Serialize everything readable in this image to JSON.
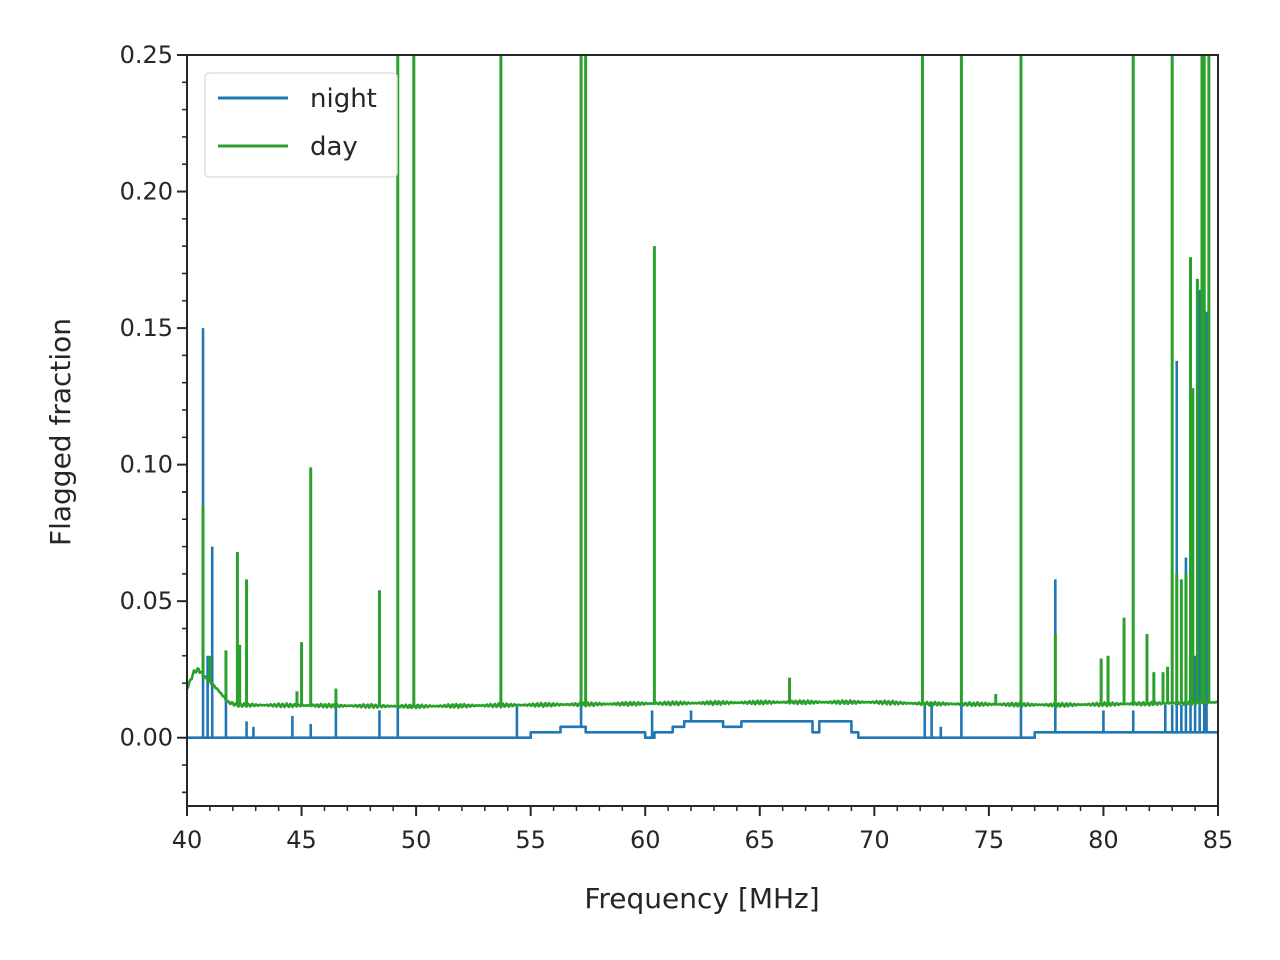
{
  "chart_data": {
    "type": "line",
    "title": "",
    "xlabel": "Frequency [MHz]",
    "ylabel": "Flagged fraction",
    "xlim": [
      40,
      85
    ],
    "ylim": [
      -0.025,
      0.25
    ],
    "xticks": [
      40,
      45,
      50,
      55,
      60,
      65,
      70,
      75,
      80,
      85
    ],
    "xtick_labels": [
      "40",
      "45",
      "50",
      "55",
      "60",
      "65",
      "70",
      "75",
      "80",
      "85"
    ],
    "yticks": [
      0.0,
      0.05,
      0.1,
      0.15,
      0.2,
      0.25
    ],
    "ytick_labels": [
      "0.00",
      "0.05",
      "0.10",
      "0.15",
      "0.20",
      "0.25"
    ],
    "legend_position": "top-left",
    "grid": false,
    "series": [
      {
        "name": "night",
        "color": "#1f77b4",
        "base_levels": [
          [
            40.0,
            55.0,
            0.0
          ],
          [
            55.0,
            56.3,
            0.002
          ],
          [
            56.3,
            57.4,
            0.004
          ],
          [
            57.4,
            60.0,
            0.002
          ],
          [
            60.0,
            60.4,
            0.0
          ],
          [
            60.4,
            61.2,
            0.002
          ],
          [
            61.2,
            61.7,
            0.004
          ],
          [
            61.7,
            63.4,
            0.006
          ],
          [
            63.4,
            64.2,
            0.004
          ],
          [
            64.2,
            66.2,
            0.006
          ],
          [
            66.2,
            67.3,
            0.006
          ],
          [
            67.3,
            67.6,
            0.002
          ],
          [
            67.6,
            69.0,
            0.006
          ],
          [
            69.0,
            69.3,
            0.002
          ],
          [
            69.3,
            77.0,
            0.0
          ],
          [
            77.0,
            82.5,
            0.002
          ],
          [
            82.5,
            85.0,
            0.002
          ]
        ],
        "spikes": [
          [
            40.7,
            0.15
          ],
          [
            40.9,
            0.03
          ],
          [
            41.1,
            0.07
          ],
          [
            41.7,
            0.014
          ],
          [
            42.6,
            0.006
          ],
          [
            42.9,
            0.004
          ],
          [
            44.6,
            0.008
          ],
          [
            45.4,
            0.005
          ],
          [
            46.5,
            0.016
          ],
          [
            48.4,
            0.01
          ],
          [
            49.2,
            0.012
          ],
          [
            54.4,
            0.012
          ],
          [
            57.2,
            0.012
          ],
          [
            60.3,
            0.01
          ],
          [
            62.0,
            0.01
          ],
          [
            72.2,
            0.012
          ],
          [
            72.5,
            0.012
          ],
          [
            72.9,
            0.004
          ],
          [
            73.8,
            0.012
          ],
          [
            76.4,
            0.012
          ],
          [
            77.9,
            0.058
          ],
          [
            80.0,
            0.01
          ],
          [
            81.3,
            0.01
          ],
          [
            82.7,
            0.012
          ],
          [
            83.0,
            0.012
          ],
          [
            83.2,
            0.138
          ],
          [
            83.4,
            0.012
          ],
          [
            83.6,
            0.066
          ],
          [
            83.8,
            0.02
          ],
          [
            84.0,
            0.03
          ],
          [
            84.2,
            0.164
          ],
          [
            84.4,
            0.06
          ],
          [
            84.5,
            0.156
          ]
        ]
      },
      {
        "name": "day",
        "color": "#2ca02c",
        "base_profile": [
          [
            40.0,
            0.018
          ],
          [
            40.3,
            0.024
          ],
          [
            40.5,
            0.025
          ],
          [
            40.8,
            0.022
          ],
          [
            41.3,
            0.018
          ],
          [
            41.8,
            0.013
          ],
          [
            42.2,
            0.012
          ],
          [
            50.0,
            0.0115
          ],
          [
            55.0,
            0.012
          ],
          [
            60.0,
            0.0125
          ],
          [
            66.0,
            0.013
          ],
          [
            70.0,
            0.013
          ],
          [
            72.0,
            0.0125
          ],
          [
            78.0,
            0.012
          ],
          [
            82.0,
            0.0125
          ],
          [
            85.0,
            0.013
          ]
        ],
        "spikes": [
          [
            40.7,
            0.085
          ],
          [
            41.0,
            0.03
          ],
          [
            41.7,
            0.032
          ],
          [
            42.2,
            0.068
          ],
          [
            42.3,
            0.034
          ],
          [
            42.6,
            0.058
          ],
          [
            44.8,
            0.017
          ],
          [
            45.0,
            0.035
          ],
          [
            45.4,
            0.099
          ],
          [
            46.5,
            0.018
          ],
          [
            48.4,
            0.054
          ],
          [
            49.2,
            0.25
          ],
          [
            49.9,
            0.25
          ],
          [
            53.7,
            0.25
          ],
          [
            57.2,
            0.25
          ],
          [
            57.4,
            0.25
          ],
          [
            60.4,
            0.18
          ],
          [
            66.3,
            0.022
          ],
          [
            72.1,
            0.25
          ],
          [
            73.8,
            0.25
          ],
          [
            75.3,
            0.016
          ],
          [
            76.4,
            0.25
          ],
          [
            77.9,
            0.038
          ],
          [
            79.9,
            0.029
          ],
          [
            80.2,
            0.03
          ],
          [
            80.9,
            0.044
          ],
          [
            81.3,
            0.25
          ],
          [
            81.9,
            0.038
          ],
          [
            82.2,
            0.024
          ],
          [
            82.6,
            0.024
          ],
          [
            82.8,
            0.026
          ],
          [
            83.0,
            0.25
          ],
          [
            83.2,
            0.06
          ],
          [
            83.4,
            0.058
          ],
          [
            83.6,
            0.06
          ],
          [
            83.8,
            0.176
          ],
          [
            83.9,
            0.128
          ],
          [
            84.1,
            0.168
          ],
          [
            84.3,
            0.25
          ],
          [
            84.4,
            0.25
          ],
          [
            84.6,
            0.25
          ]
        ]
      }
    ]
  }
}
